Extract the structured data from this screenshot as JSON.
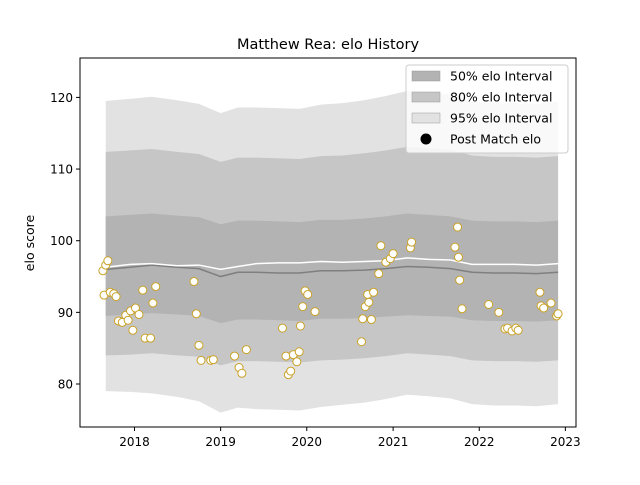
{
  "chart_data": {
    "type": "area",
    "title": "Matthew Rea: elo History",
    "xlabel": "",
    "ylabel": "elo score",
    "xlim": [
      "2017-05-15",
      "2023-02-15"
    ],
    "ylim": [
      74,
      125.5
    ],
    "x_ticks": [
      "2018",
      "2019",
      "2020",
      "2021",
      "2022",
      "2023"
    ],
    "x_tick_dates": [
      "2018-01-01",
      "2019-01-01",
      "2020-01-01",
      "2021-01-01",
      "2022-01-01",
      "2023-01-01"
    ],
    "y_ticks": [
      80,
      90,
      100,
      110,
      120
    ],
    "grid": false,
    "legend": {
      "position": "top-right",
      "entries": [
        {
          "label": "50% elo Interval",
          "kind": "patch",
          "color": "#b3b3b3"
        },
        {
          "label": "80% elo Interval",
          "kind": "patch",
          "color": "#c6c6c6"
        },
        {
          "label": "95% elo Interval",
          "kind": "patch",
          "color": "#e2e2e2"
        },
        {
          "label": "Post Match elo",
          "kind": "marker",
          "color": "#000000"
        }
      ]
    },
    "colors": {
      "band_50": "#b3b3b3",
      "band_80": "#c6c6c6",
      "band_95": "#e2e2e2",
      "mean_line": "#7f7f7f",
      "white_line": "#ffffff",
      "point_edge": "#c9a227",
      "point_fill": "#ffffff"
    },
    "x": [
      "2017-09-01",
      "2017-12-15",
      "2018-03-15",
      "2018-07-01",
      "2018-10-01",
      "2019-01-01",
      "2019-03-15",
      "2019-06-01",
      "2019-09-01",
      "2019-12-01",
      "2020-03-01",
      "2020-06-01",
      "2020-09-01",
      "2020-12-01",
      "2021-03-01",
      "2021-06-01",
      "2021-09-01",
      "2021-12-01",
      "2022-03-01",
      "2022-06-01",
      "2022-09-01",
      "2022-12-01"
    ],
    "series": [
      {
        "role": "mean",
        "values": [
          96.0,
          96.3,
          96.6,
          96.3,
          96.1,
          95.0,
          95.6,
          95.6,
          95.5,
          95.5,
          95.8,
          95.8,
          95.9,
          96.1,
          96.4,
          96.3,
          96.1,
          95.6,
          95.5,
          95.5,
          95.4,
          95.6
        ]
      },
      {
        "role": "rating",
        "values": [
          96.3,
          96.7,
          96.8,
          96.5,
          96.6,
          96.0,
          96.4,
          96.8,
          96.9,
          96.9,
          97.1,
          97.0,
          97.1,
          97.2,
          97.6,
          97.4,
          97.3,
          96.7,
          96.7,
          96.7,
          96.6,
          96.8
        ]
      },
      {
        "role": "band_50",
        "lower": [
          89.5,
          89.7,
          89.9,
          89.7,
          89.5,
          88.5,
          89.0,
          89.0,
          88.9,
          88.8,
          89.1,
          89.1,
          89.2,
          89.4,
          89.6,
          89.5,
          89.4,
          88.9,
          88.8,
          88.8,
          88.7,
          88.9
        ],
        "upper": [
          103.4,
          103.6,
          103.8,
          103.5,
          103.3,
          102.3,
          102.8,
          102.8,
          102.7,
          102.6,
          102.9,
          102.9,
          103.1,
          103.4,
          103.8,
          103.6,
          103.4,
          102.8,
          102.7,
          102.7,
          102.6,
          102.8
        ]
      },
      {
        "role": "band_80",
        "lower": [
          84.0,
          84.1,
          84.3,
          84.0,
          83.8,
          82.6,
          83.2,
          83.2,
          83.1,
          83.0,
          83.3,
          83.4,
          83.6,
          83.9,
          84.3,
          84.1,
          83.9,
          83.3,
          83.2,
          83.2,
          83.1,
          83.3
        ]
      },
      {
        "role": "band_80_upper",
        "values": [
          112.4,
          112.6,
          112.8,
          112.4,
          112.1,
          111.0,
          111.6,
          111.6,
          111.5,
          111.4,
          111.8,
          111.9,
          112.2,
          112.6,
          113.1,
          112.9,
          112.7,
          111.9,
          111.7,
          111.7,
          111.6,
          111.8
        ]
      },
      {
        "role": "band_95",
        "lower": [
          79.0,
          78.9,
          78.7,
          78.2,
          77.6,
          76.0,
          76.7,
          76.5,
          76.4,
          76.3,
          76.8,
          77.1,
          77.4,
          77.9,
          78.5,
          78.3,
          78.0,
          77.2,
          77.0,
          77.0,
          76.9,
          77.2
        ],
        "upper": [
          119.5,
          119.8,
          120.1,
          119.6,
          119.1,
          117.8,
          118.6,
          118.6,
          118.5,
          118.4,
          119.0,
          119.2,
          119.6,
          120.2,
          120.9,
          120.7,
          120.4,
          119.4,
          119.2,
          119.2,
          119.1,
          119.4
        ]
      },
      {
        "role": "post_match_elo",
        "name": "Post Match elo",
        "points": [
          {
            "x": "2017-08-20",
            "y": 95.8
          },
          {
            "x": "2017-08-25",
            "y": 92.4
          },
          {
            "x": "2017-09-01",
            "y": 96.6
          },
          {
            "x": "2017-09-10",
            "y": 97.2
          },
          {
            "x": "2017-09-20",
            "y": 92.8
          },
          {
            "x": "2017-10-05",
            "y": 92.6
          },
          {
            "x": "2017-10-15",
            "y": 92.2
          },
          {
            "x": "2017-10-25",
            "y": 88.8
          },
          {
            "x": "2017-11-10",
            "y": 88.6
          },
          {
            "x": "2017-11-25",
            "y": 89.6
          },
          {
            "x": "2017-12-05",
            "y": 88.9
          },
          {
            "x": "2017-12-15",
            "y": 90.2
          },
          {
            "x": "2017-12-25",
            "y": 87.5
          },
          {
            "x": "2018-01-05",
            "y": 90.6
          },
          {
            "x": "2018-01-20",
            "y": 89.7
          },
          {
            "x": "2018-02-05",
            "y": 93.1
          },
          {
            "x": "2018-02-15",
            "y": 86.4
          },
          {
            "x": "2018-03-10",
            "y": 86.4
          },
          {
            "x": "2018-03-20",
            "y": 91.3
          },
          {
            "x": "2018-04-01",
            "y": 93.6
          },
          {
            "x": "2018-09-10",
            "y": 94.3
          },
          {
            "x": "2018-09-20",
            "y": 89.8
          },
          {
            "x": "2018-10-01",
            "y": 85.4
          },
          {
            "x": "2018-10-10",
            "y": 83.3
          },
          {
            "x": "2018-11-20",
            "y": 83.3
          },
          {
            "x": "2018-12-01",
            "y": 83.4
          },
          {
            "x": "2019-03-01",
            "y": 83.9
          },
          {
            "x": "2019-03-20",
            "y": 82.3
          },
          {
            "x": "2019-04-01",
            "y": 81.5
          },
          {
            "x": "2019-04-20",
            "y": 84.8
          },
          {
            "x": "2019-09-20",
            "y": 87.8
          },
          {
            "x": "2019-10-05",
            "y": 83.9
          },
          {
            "x": "2019-10-15",
            "y": 81.3
          },
          {
            "x": "2019-10-25",
            "y": 81.8
          },
          {
            "x": "2019-11-05",
            "y": 84.1
          },
          {
            "x": "2019-11-20",
            "y": 83.1
          },
          {
            "x": "2019-11-30",
            "y": 84.5
          },
          {
            "x": "2019-12-05",
            "y": 88.1
          },
          {
            "x": "2019-12-15",
            "y": 90.8
          },
          {
            "x": "2019-12-25",
            "y": 93.0
          },
          {
            "x": "2020-01-05",
            "y": 92.5
          },
          {
            "x": "2020-02-05",
            "y": 90.1
          },
          {
            "x": "2020-08-20",
            "y": 85.9
          },
          {
            "x": "2020-08-25",
            "y": 89.1
          },
          {
            "x": "2020-09-05",
            "y": 90.8
          },
          {
            "x": "2020-09-15",
            "y": 92.5
          },
          {
            "x": "2020-09-20",
            "y": 91.4
          },
          {
            "x": "2020-10-01",
            "y": 89.0
          },
          {
            "x": "2020-10-10",
            "y": 92.8
          },
          {
            "x": "2020-11-01",
            "y": 95.4
          },
          {
            "x": "2020-11-10",
            "y": 99.3
          },
          {
            "x": "2020-12-01",
            "y": 97.0
          },
          {
            "x": "2020-12-20",
            "y": 97.5
          },
          {
            "x": "2021-01-01",
            "y": 98.2
          },
          {
            "x": "2021-03-15",
            "y": 99.0
          },
          {
            "x": "2021-03-20",
            "y": 99.8
          },
          {
            "x": "2021-09-20",
            "y": 99.1
          },
          {
            "x": "2021-10-01",
            "y": 101.9
          },
          {
            "x": "2021-10-05",
            "y": 97.7
          },
          {
            "x": "2021-10-10",
            "y": 94.5
          },
          {
            "x": "2021-10-20",
            "y": 90.5
          },
          {
            "x": "2022-02-10",
            "y": 91.1
          },
          {
            "x": "2022-03-25",
            "y": 90.0
          },
          {
            "x": "2022-04-20",
            "y": 87.7
          },
          {
            "x": "2022-05-01",
            "y": 87.8
          },
          {
            "x": "2022-05-20",
            "y": 87.4
          },
          {
            "x": "2022-06-05",
            "y": 87.8
          },
          {
            "x": "2022-06-15",
            "y": 87.5
          },
          {
            "x": "2022-09-15",
            "y": 92.8
          },
          {
            "x": "2022-09-20",
            "y": 90.9
          },
          {
            "x": "2022-10-01",
            "y": 90.6
          },
          {
            "x": "2022-11-01",
            "y": 91.3
          },
          {
            "x": "2022-11-25",
            "y": 89.5
          },
          {
            "x": "2022-12-01",
            "y": 89.8
          }
        ]
      }
    ]
  }
}
